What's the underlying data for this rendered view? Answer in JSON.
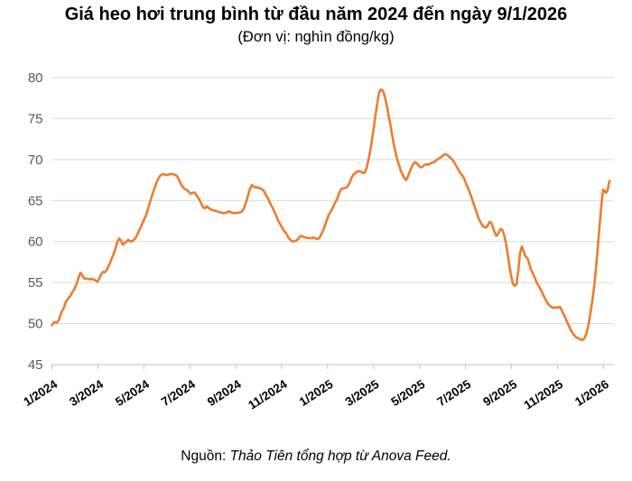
{
  "header": {
    "title": "Giá heo hơi trung bình từ đầu năm 2024 đến ngày 9/1/2026",
    "subtitle": "(Đơn vị: nghìn đồng/kg)"
  },
  "footer": {
    "source_label": "Nguồn:",
    "source_text": " Thảo Tiên tổng hợp từ Anova Feed."
  },
  "colors": {
    "line": "#ED7D31",
    "gridline": "#D9D9D9",
    "axis_line": "#C6C6C6",
    "tick": "#BFBFBF",
    "y_label_text": "#595959",
    "x_label_text": "#000000"
  },
  "chart_data": {
    "type": "line",
    "title": "Giá heo hơi trung bình từ đầu năm 2024 đến ngày 9/1/2026",
    "unit_label": "nghìn đồng/kg",
    "xlabel": "",
    "ylabel": "",
    "ylim": [
      45,
      80
    ],
    "y_ticks": [
      45,
      50,
      55,
      60,
      65,
      70,
      75,
      80
    ],
    "grid": true,
    "legend": false,
    "x_tick_labels": [
      "1/2024",
      "3/2024",
      "5/2024",
      "7/2024",
      "9/2024",
      "11/2024",
      "1/2025",
      "3/2025",
      "5/2025",
      "7/2025",
      "9/2025",
      "11/2025",
      "1/2026"
    ],
    "x_tick_month_index": [
      0,
      2,
      4,
      6,
      8,
      10,
      12,
      14,
      16,
      18,
      20,
      22,
      24
    ],
    "x_unit": "months since 1/2024",
    "series": [
      {
        "name": "Giá heo hơi trung bình (nghìn đồng/kg)",
        "points": [
          [
            0,
            49.8
          ],
          [
            0.1,
            50.2
          ],
          [
            0.2,
            50.1
          ],
          [
            0.3,
            50.4
          ],
          [
            0.4,
            51.3
          ],
          [
            0.53,
            52
          ],
          [
            0.6,
            52.6
          ],
          [
            0.69,
            53
          ],
          [
            0.81,
            53.4
          ],
          [
            0.88,
            53.8
          ],
          [
            0.96,
            54.1
          ],
          [
            1.08,
            54.9
          ],
          [
            1.16,
            55.6
          ],
          [
            1.24,
            56.2
          ],
          [
            1.32,
            55.9
          ],
          [
            1.4,
            55.5
          ],
          [
            1.51,
            55.5
          ],
          [
            1.63,
            55.4
          ],
          [
            1.75,
            55.45
          ],
          [
            1.87,
            55.3
          ],
          [
            1.98,
            55.1
          ],
          [
            2.06,
            55.5
          ],
          [
            2.14,
            56
          ],
          [
            2.22,
            56.3
          ],
          [
            2.3,
            56.25
          ],
          [
            2.38,
            56.5
          ],
          [
            2.46,
            57
          ],
          [
            2.53,
            57.4
          ],
          [
            2.61,
            58
          ],
          [
            2.69,
            58.5
          ],
          [
            2.77,
            59.2
          ],
          [
            2.85,
            60
          ],
          [
            2.93,
            60.4
          ],
          [
            3.01,
            60.1
          ],
          [
            3.08,
            59.6
          ],
          [
            3.16,
            59.8
          ],
          [
            3.24,
            60
          ],
          [
            3.32,
            60.2
          ],
          [
            3.44,
            60
          ],
          [
            3.52,
            60.1
          ],
          [
            3.63,
            60.4
          ],
          [
            3.71,
            60.8
          ],
          [
            3.79,
            61.3
          ],
          [
            3.87,
            61.8
          ],
          [
            3.95,
            62.3
          ],
          [
            4.03,
            62.8
          ],
          [
            4.11,
            63.3
          ],
          [
            4.18,
            64
          ],
          [
            4.26,
            64.7
          ],
          [
            4.34,
            65.5
          ],
          [
            4.42,
            66.1
          ],
          [
            4.5,
            66.8
          ],
          [
            4.58,
            67.4
          ],
          [
            4.66,
            67.8
          ],
          [
            4.73,
            68.1
          ],
          [
            4.85,
            68.25
          ],
          [
            4.97,
            68.1
          ],
          [
            5.09,
            68.2
          ],
          [
            5.21,
            68.25
          ],
          [
            5.32,
            68.2
          ],
          [
            5.44,
            68
          ],
          [
            5.52,
            67.6
          ],
          [
            5.6,
            67.1
          ],
          [
            5.68,
            66.7
          ],
          [
            5.76,
            66.45
          ],
          [
            5.87,
            66.3
          ],
          [
            5.95,
            66.1
          ],
          [
            6.03,
            65.85
          ],
          [
            6.11,
            65.95
          ],
          [
            6.19,
            66
          ],
          [
            6.27,
            65.75
          ],
          [
            6.35,
            65.4
          ],
          [
            6.42,
            65.1
          ],
          [
            6.5,
            64.6
          ],
          [
            6.58,
            64.2
          ],
          [
            6.66,
            64.05
          ],
          [
            6.74,
            64.3
          ],
          [
            6.82,
            64.1
          ],
          [
            6.9,
            63.95
          ],
          [
            7.01,
            63.8
          ],
          [
            7.13,
            63.75
          ],
          [
            7.25,
            63.6
          ],
          [
            7.37,
            63.55
          ],
          [
            7.49,
            63.45
          ],
          [
            7.6,
            63.55
          ],
          [
            7.68,
            63.7
          ],
          [
            7.76,
            63.6
          ],
          [
            7.88,
            63.5
          ],
          [
            7.96,
            63.45
          ],
          [
            8.04,
            63.5
          ],
          [
            8.15,
            63.55
          ],
          [
            8.23,
            63.6
          ],
          [
            8.31,
            63.8
          ],
          [
            8.39,
            64.3
          ],
          [
            8.47,
            65
          ],
          [
            8.55,
            65.8
          ],
          [
            8.63,
            66.5
          ],
          [
            8.7,
            66.9
          ],
          [
            8.78,
            66.7
          ],
          [
            8.86,
            66.6
          ],
          [
            8.98,
            66.6
          ],
          [
            9.06,
            66.5
          ],
          [
            9.14,
            66.4
          ],
          [
            9.22,
            66.2
          ],
          [
            9.29,
            65.8
          ],
          [
            9.37,
            65.4
          ],
          [
            9.45,
            65
          ],
          [
            9.53,
            64.5
          ],
          [
            9.61,
            64.1
          ],
          [
            9.69,
            63.6
          ],
          [
            9.77,
            63.1
          ],
          [
            9.84,
            62.6
          ],
          [
            9.92,
            62.2
          ],
          [
            10,
            61.8
          ],
          [
            10.08,
            61.4
          ],
          [
            10.16,
            61.1
          ],
          [
            10.24,
            60.8
          ],
          [
            10.31,
            60.4
          ],
          [
            10.39,
            60.2
          ],
          [
            10.47,
            60
          ],
          [
            10.55,
            60.05
          ],
          [
            10.63,
            60.1
          ],
          [
            10.71,
            60.3
          ],
          [
            10.79,
            60.6
          ],
          [
            10.86,
            60.7
          ],
          [
            10.94,
            60.6
          ],
          [
            11.02,
            60.5
          ],
          [
            11.14,
            60.45
          ],
          [
            11.26,
            60.4
          ],
          [
            11.34,
            60.5
          ],
          [
            11.41,
            60.45
          ],
          [
            11.49,
            60.35
          ],
          [
            11.57,
            60.3
          ],
          [
            11.65,
            60.5
          ],
          [
            11.73,
            60.9
          ],
          [
            11.81,
            61.4
          ],
          [
            11.89,
            62
          ],
          [
            11.96,
            62.6
          ],
          [
            12.04,
            63.2
          ],
          [
            12.12,
            63.6
          ],
          [
            12.2,
            64
          ],
          [
            12.28,
            64.5
          ],
          [
            12.36,
            64.9
          ],
          [
            12.44,
            65.4
          ],
          [
            12.51,
            66
          ],
          [
            12.59,
            66.4
          ],
          [
            12.67,
            66.5
          ],
          [
            12.75,
            66.55
          ],
          [
            12.83,
            66.6
          ],
          [
            12.91,
            66.9
          ],
          [
            12.99,
            67.4
          ],
          [
            13.06,
            67.9
          ],
          [
            13.14,
            68.2
          ],
          [
            13.22,
            68.4
          ],
          [
            13.3,
            68.55
          ],
          [
            13.38,
            68.6
          ],
          [
            13.46,
            68.5
          ],
          [
            13.54,
            68.35
          ],
          [
            13.62,
            68.4
          ],
          [
            13.7,
            69
          ],
          [
            13.77,
            69.9
          ],
          [
            13.85,
            71
          ],
          [
            13.93,
            72.4
          ],
          [
            14.01,
            74
          ],
          [
            14.09,
            75.6
          ],
          [
            14.17,
            77
          ],
          [
            14.24,
            78.2
          ],
          [
            14.32,
            78.55
          ],
          [
            14.4,
            78.4
          ],
          [
            14.48,
            77.8
          ],
          [
            14.56,
            76.8
          ],
          [
            14.64,
            75.6
          ],
          [
            14.72,
            74.4
          ],
          [
            14.8,
            73.1
          ],
          [
            14.87,
            72
          ],
          [
            14.95,
            70.9
          ],
          [
            15.03,
            70
          ],
          [
            15.11,
            69.3
          ],
          [
            15.19,
            68.6
          ],
          [
            15.27,
            68.1
          ],
          [
            15.35,
            67.7
          ],
          [
            15.42,
            67.5
          ],
          [
            15.5,
            68
          ],
          [
            15.58,
            68.6
          ],
          [
            15.66,
            69.1
          ],
          [
            15.74,
            69.5
          ],
          [
            15.82,
            69.7
          ],
          [
            15.9,
            69.5
          ],
          [
            15.97,
            69.2
          ],
          [
            16.05,
            69.05
          ],
          [
            16.13,
            69.15
          ],
          [
            16.21,
            69.35
          ],
          [
            16.29,
            69.45
          ],
          [
            16.37,
            69.35
          ],
          [
            16.44,
            69.5
          ],
          [
            16.52,
            69.6
          ],
          [
            16.6,
            69.65
          ],
          [
            16.68,
            69.8
          ],
          [
            16.76,
            70
          ],
          [
            16.84,
            70.15
          ],
          [
            16.92,
            70.25
          ],
          [
            16.99,
            70.4
          ],
          [
            17.07,
            70.6
          ],
          [
            17.15,
            70.65
          ],
          [
            17.23,
            70.5
          ],
          [
            17.31,
            70.3
          ],
          [
            17.39,
            70.1
          ],
          [
            17.47,
            69.85
          ],
          [
            17.54,
            69.5
          ],
          [
            17.62,
            69.1
          ],
          [
            17.7,
            68.7
          ],
          [
            17.78,
            68.3
          ],
          [
            17.86,
            68.1
          ],
          [
            17.94,
            67.7
          ],
          [
            18.02,
            67.1
          ],
          [
            18.1,
            66.6
          ],
          [
            18.17,
            66.1
          ],
          [
            18.25,
            65.5
          ],
          [
            18.33,
            64.8
          ],
          [
            18.41,
            64.2
          ],
          [
            18.49,
            63.5
          ],
          [
            18.57,
            62.8
          ],
          [
            18.65,
            62.4
          ],
          [
            18.72,
            62
          ],
          [
            18.8,
            61.8
          ],
          [
            18.88,
            61.7
          ],
          [
            18.96,
            61.9
          ],
          [
            19.04,
            62.4
          ],
          [
            19.12,
            62.3
          ],
          [
            19.2,
            61.7
          ],
          [
            19.27,
            61.1
          ],
          [
            19.35,
            60.7
          ],
          [
            19.43,
            61
          ],
          [
            19.51,
            61.5
          ],
          [
            19.59,
            61.5
          ],
          [
            19.67,
            60.9
          ],
          [
            19.74,
            60.1
          ],
          [
            19.82,
            58.8
          ],
          [
            19.9,
            57.2
          ],
          [
            19.98,
            55.9
          ],
          [
            20.06,
            54.9
          ],
          [
            20.14,
            54.6
          ],
          [
            20.22,
            54.8
          ],
          [
            20.3,
            56.5
          ],
          [
            20.37,
            58.5
          ],
          [
            20.45,
            59.4
          ],
          [
            20.53,
            58.8
          ],
          [
            20.61,
            58.2
          ],
          [
            20.69,
            58
          ],
          [
            20.77,
            57.3
          ],
          [
            20.85,
            56.6
          ],
          [
            20.92,
            56.2
          ],
          [
            21,
            55.7
          ],
          [
            21.08,
            55.1
          ],
          [
            21.16,
            54.7
          ],
          [
            21.24,
            54.3
          ],
          [
            21.32,
            53.9
          ],
          [
            21.4,
            53.4
          ],
          [
            21.47,
            53
          ],
          [
            21.55,
            52.6
          ],
          [
            21.63,
            52.3
          ],
          [
            21.71,
            52.1
          ],
          [
            21.79,
            51.9
          ],
          [
            21.87,
            52
          ],
          [
            21.95,
            51.9
          ],
          [
            22.02,
            52
          ],
          [
            22.1,
            52.05
          ],
          [
            22.18,
            51.7
          ],
          [
            22.26,
            51.2
          ],
          [
            22.34,
            50.7
          ],
          [
            22.42,
            50.2
          ],
          [
            22.5,
            49.7
          ],
          [
            22.57,
            49.3
          ],
          [
            22.65,
            48.9
          ],
          [
            22.73,
            48.6
          ],
          [
            22.81,
            48.35
          ],
          [
            22.89,
            48.2
          ],
          [
            22.97,
            48.1
          ],
          [
            23.05,
            48
          ],
          [
            23.13,
            48.05
          ],
          [
            23.2,
            48.35
          ],
          [
            23.28,
            49
          ],
          [
            23.36,
            50
          ],
          [
            23.44,
            51.3
          ],
          [
            23.52,
            52.8
          ],
          [
            23.6,
            54.5
          ],
          [
            23.67,
            56.5
          ],
          [
            23.75,
            59
          ],
          [
            23.83,
            61.8
          ],
          [
            23.91,
            64.3
          ],
          [
            23.95,
            65.4
          ],
          [
            23.99,
            66.35
          ],
          [
            24.03,
            66.1
          ],
          [
            24.07,
            66.2
          ],
          [
            24.11,
            65.95
          ],
          [
            24.15,
            66.05
          ],
          [
            24.19,
            66.3
          ],
          [
            24.23,
            67
          ],
          [
            24.27,
            67.4
          ]
        ]
      }
    ]
  }
}
